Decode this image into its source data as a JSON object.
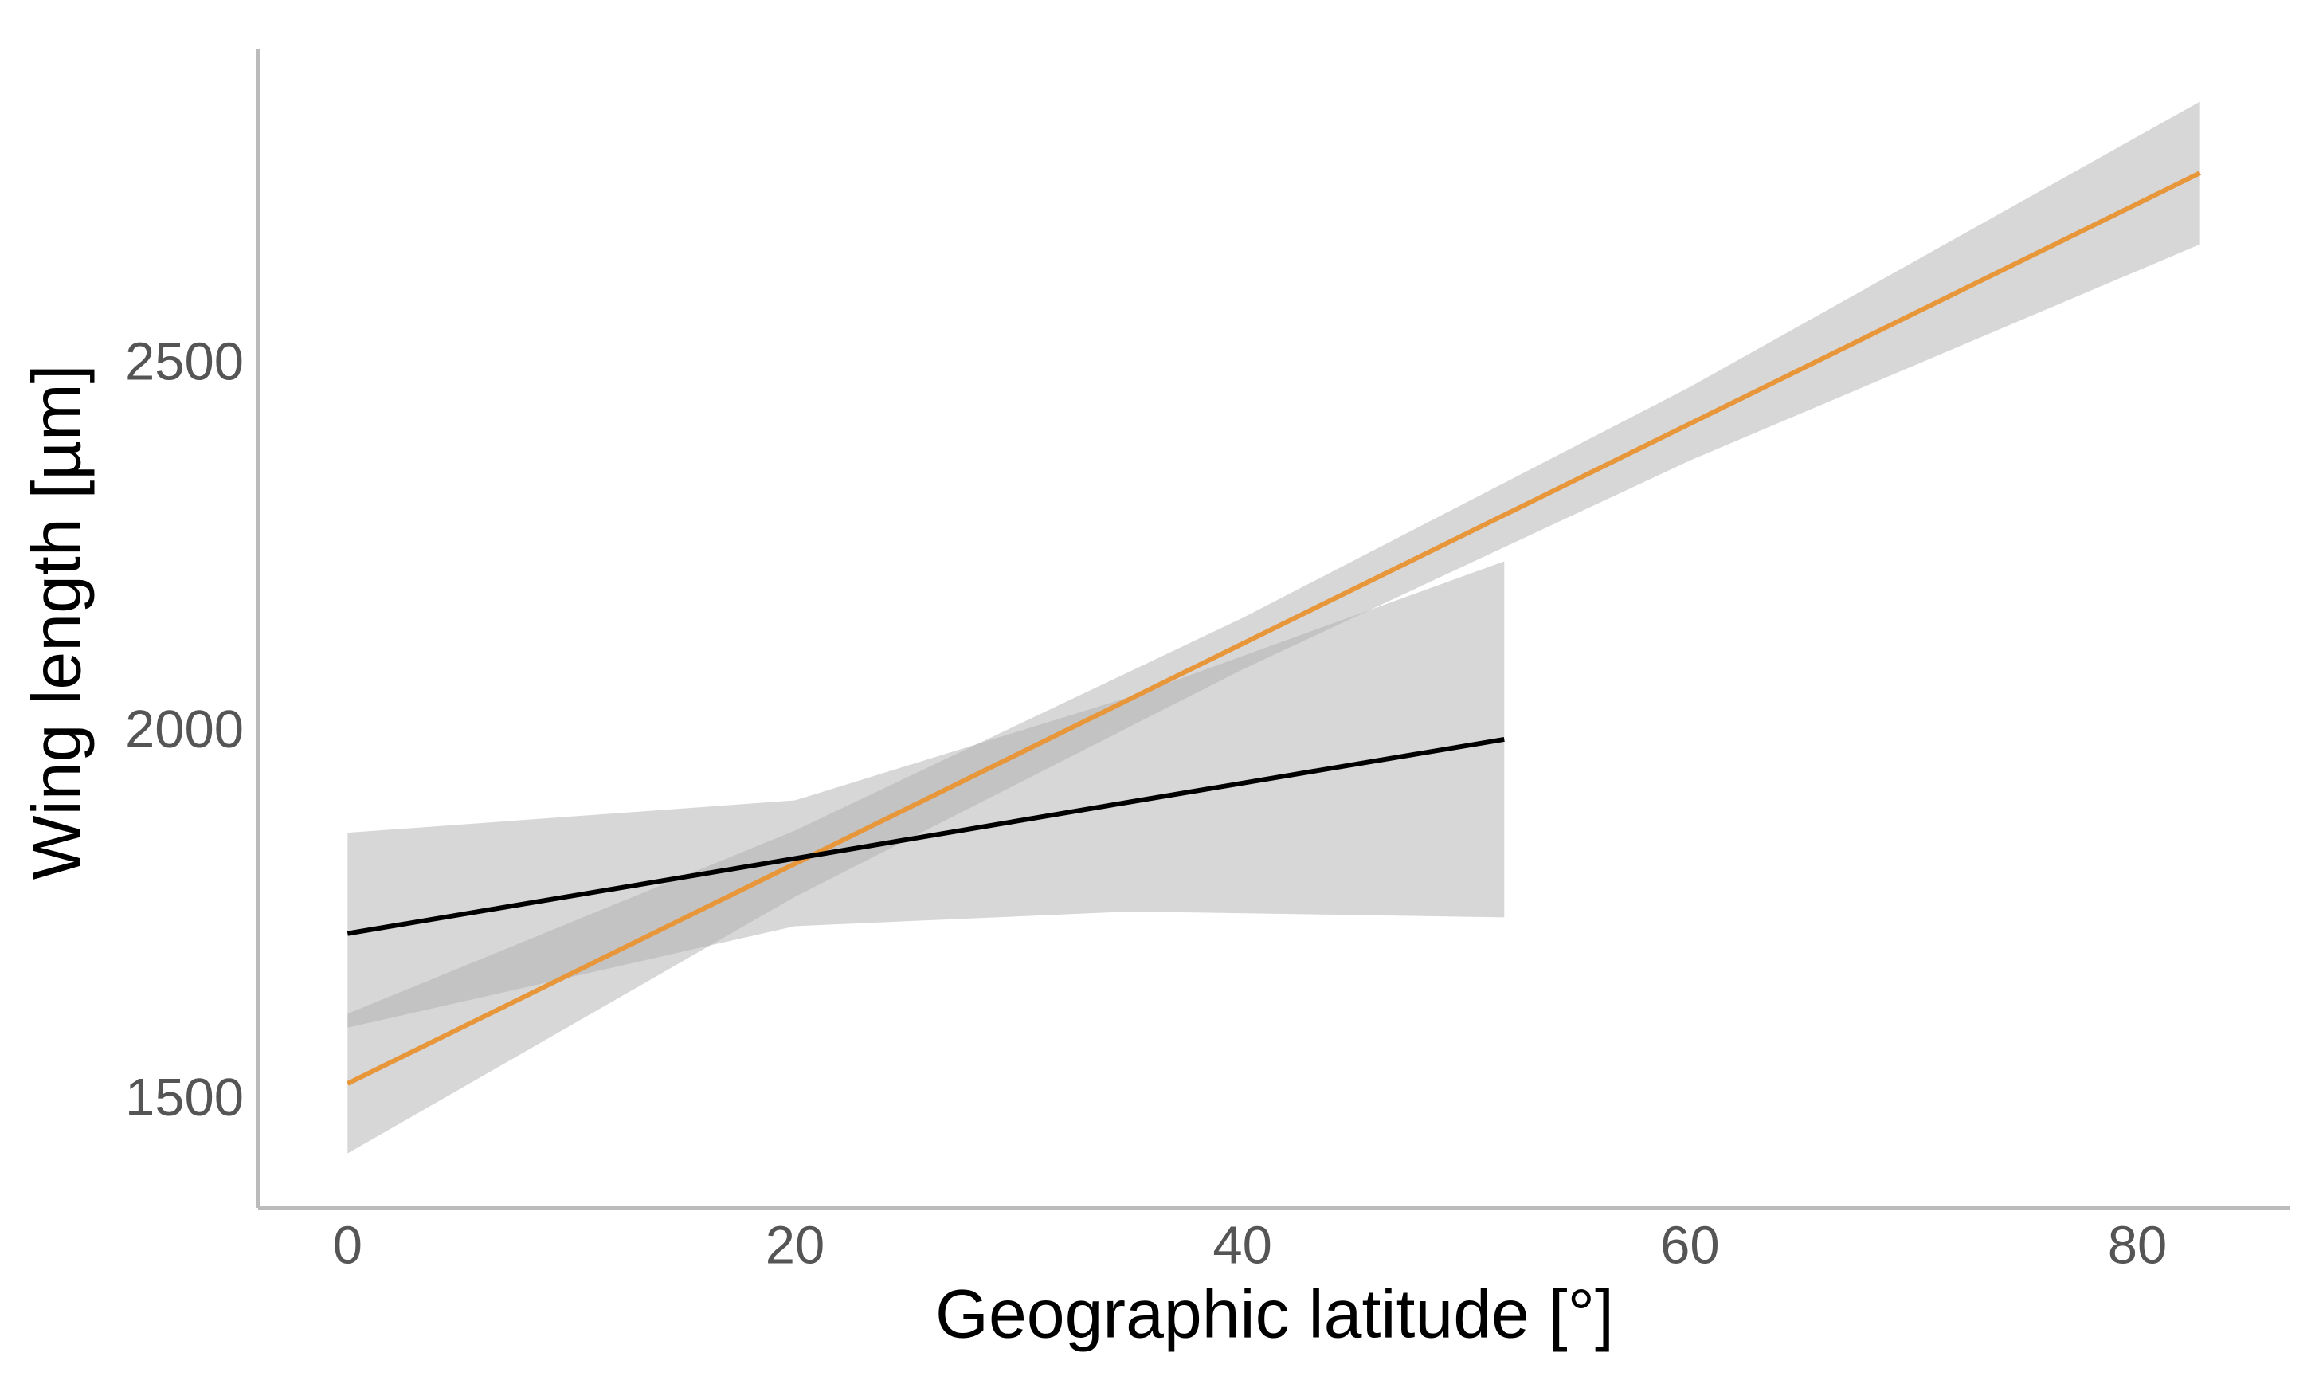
{
  "chart_data": {
    "type": "line",
    "xlabel": "Geographic latitude [°]",
    "ylabel": "Wing length [µm]",
    "xlim": [
      -4,
      86.8
    ],
    "ylim": [
      1355,
      2931
    ],
    "xticks": [
      0,
      20,
      40,
      60,
      80
    ],
    "yticks": [
      1500,
      2000,
      2500
    ],
    "grid": false,
    "series": [
      {
        "color": "#e8963a",
        "band_color": "#b0b0b0",
        "x": [
          0,
          20,
          40,
          60,
          82.8
        ],
        "values": [
          1524,
          1823,
          2122,
          2421,
          2762
        ],
        "lower": [
          1429,
          1778,
          2087,
          2371,
          2665
        ],
        "upper": [
          1619,
          1868,
          2157,
          2471,
          2859
        ]
      },
      {
        "color": "#000000",
        "band_color": "#b0b0b0",
        "x": [
          0,
          20,
          35,
          51.7
        ],
        "values": [
          1728,
          1830,
          1907,
          1992
        ],
        "lower": [
          1600,
          1738,
          1758,
          1750
        ],
        "upper": [
          1865,
          1909,
          2050,
          2234
        ]
      }
    ]
  }
}
